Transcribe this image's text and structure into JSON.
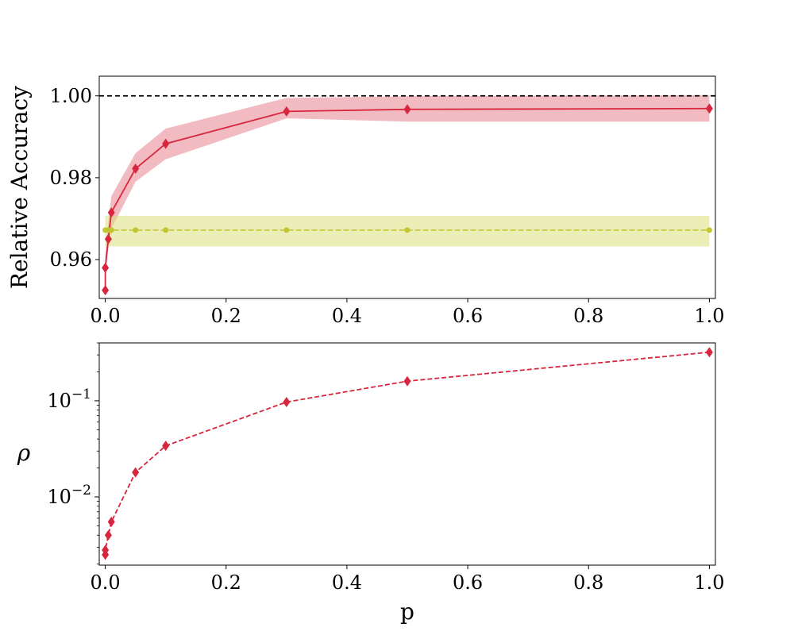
{
  "colors": {
    "accent": "#d7263d",
    "band_accent": "#e8848f",
    "baseline": "#c4c430",
    "band_baseline": "#dbe07a",
    "reference": "#000000"
  },
  "chart_data": [
    {
      "type": "line",
      "ylabel": "Relative Accuracy",
      "xlabel": "",
      "xlim": [
        -0.01,
        1.01
      ],
      "ylim": [
        0.9505,
        1.0048
      ],
      "x_ticks": [
        0.0,
        0.2,
        0.4,
        0.6,
        0.8,
        1.0
      ],
      "x_tick_labels": [
        "0.0",
        "0.2",
        "0.4",
        "0.6",
        "0.8",
        "1.0"
      ],
      "y_ticks": [
        0.96,
        0.98,
        1.0
      ],
      "y_tick_labels": [
        "0.96",
        "0.98",
        "1.00"
      ],
      "grid": false,
      "reference_line": {
        "y": 1.0,
        "style": "dashed"
      },
      "series": [
        {
          "color": "#d7263d",
          "marker": "diamond",
          "x": [
            0.0,
            0.0,
            0.005,
            0.01,
            0.05,
            0.1,
            0.3,
            0.5,
            1.0
          ],
          "y": [
            0.9525,
            0.958,
            0.965,
            0.9715,
            0.9822,
            0.9883,
            0.9962,
            0.9967,
            0.9969
          ],
          "band_low": [
            0.951,
            0.9555,
            0.9625,
            0.9675,
            0.979,
            0.9845,
            0.9945,
            0.9937,
            0.9937
          ],
          "band_high": [
            0.954,
            0.961,
            0.969,
            0.9755,
            0.986,
            0.992,
            0.9995,
            0.9999,
            1.0002
          ]
        },
        {
          "color": "#c4c430",
          "marker": "circle",
          "x": [
            0.0,
            0.005,
            0.01,
            0.05,
            0.1,
            0.3,
            0.5,
            1.0
          ],
          "y": [
            0.9672,
            0.9672,
            0.9672,
            0.9672,
            0.9672,
            0.9672,
            0.9672,
            0.9672
          ],
          "band_low": [
            0.9632,
            0.9632,
            0.9632,
            0.9632,
            0.9632,
            0.9632,
            0.9632,
            0.9632
          ],
          "band_high": [
            0.9707,
            0.9707,
            0.9707,
            0.9707,
            0.9707,
            0.9707,
            0.9707,
            0.9707
          ]
        }
      ]
    },
    {
      "type": "line",
      "xlabel": "p",
      "ylabel": "ρ",
      "yscale": "log",
      "xlim": [
        -0.01,
        1.01
      ],
      "ylim": [
        0.00195,
        0.4
      ],
      "x_ticks": [
        0.0,
        0.2,
        0.4,
        0.6,
        0.8,
        1.0
      ],
      "x_tick_labels": [
        "0.0",
        "0.2",
        "0.4",
        "0.6",
        "0.8",
        "1.0"
      ],
      "y_ticks": [
        0.01,
        0.1
      ],
      "y_tick_base": "10",
      "y_tick_exponents": [
        "−2",
        "−1"
      ],
      "grid": false,
      "series": [
        {
          "color": "#d7263d",
          "marker": "diamond",
          "style": "dashed",
          "x": [
            0.0,
            0.0,
            0.005,
            0.01,
            0.05,
            0.1,
            0.3,
            0.5,
            1.0
          ],
          "y": [
            0.0025,
            0.0028,
            0.004,
            0.0055,
            0.018,
            0.034,
            0.097,
            0.16,
            0.32
          ]
        }
      ]
    }
  ]
}
